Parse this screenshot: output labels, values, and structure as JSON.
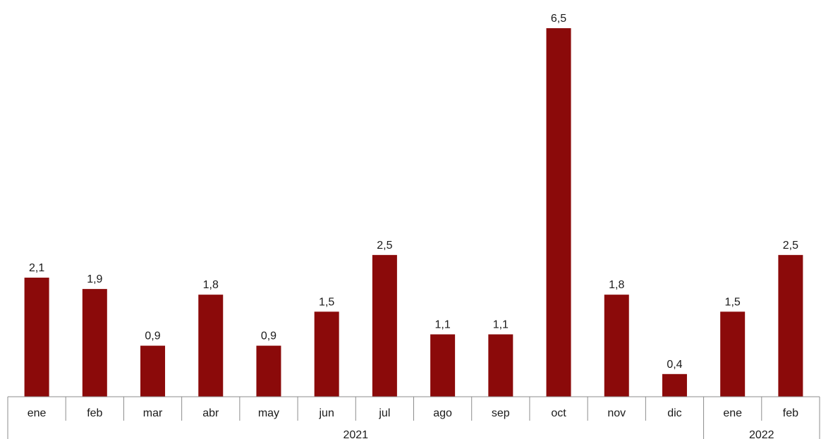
{
  "chart_data": {
    "type": "bar",
    "categories": [
      "ene",
      "feb",
      "mar",
      "abr",
      "may",
      "jun",
      "jul",
      "ago",
      "sep",
      "oct",
      "nov",
      "dic",
      "ene",
      "feb"
    ],
    "values": [
      2.1,
      1.9,
      0.9,
      1.8,
      0.9,
      1.5,
      2.5,
      1.1,
      1.1,
      6.5,
      1.8,
      0.4,
      1.5,
      2.5
    ],
    "value_labels": [
      "2,1",
      "1,9",
      "0,9",
      "1,8",
      "0,9",
      "1,5",
      "2,5",
      "1,1",
      "1,1",
      "6,5",
      "1,8",
      "0,4",
      "1,5",
      "2,5"
    ],
    "groups": [
      {
        "label": "2021",
        "count": 12
      },
      {
        "label": "2022",
        "count": 2
      }
    ],
    "ylim": [
      0,
      6.5
    ],
    "grid": false,
    "bar_color": "#8b0a0a"
  }
}
